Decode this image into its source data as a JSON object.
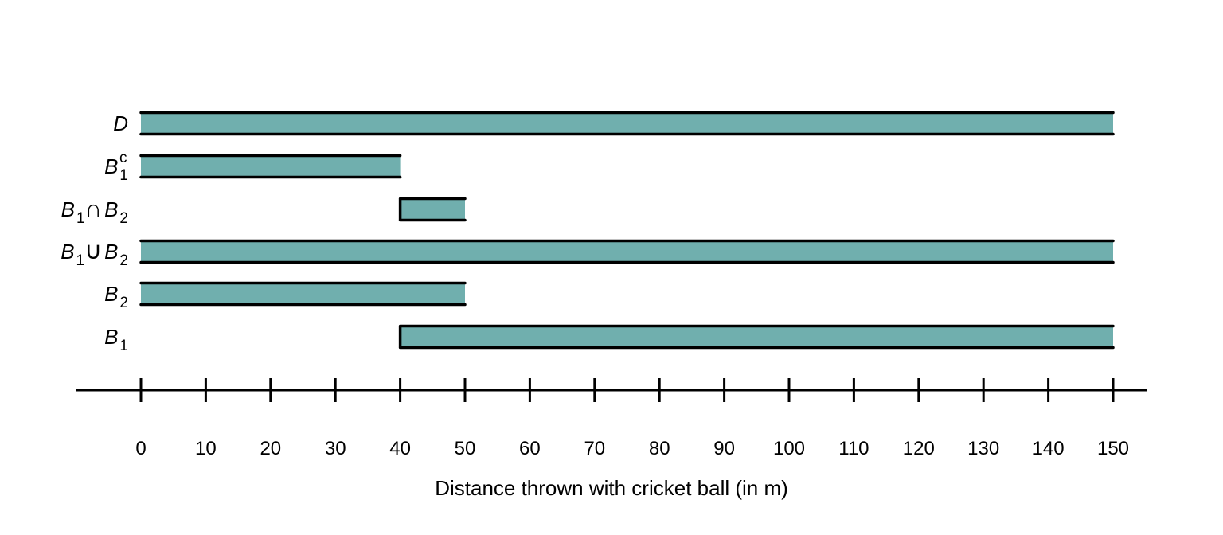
{
  "chart_data": {
    "type": "interval-diagram",
    "xlabel": "Distance thrown with cricket ball (in m)",
    "xlim": [
      0,
      150
    ],
    "ticks": [
      0,
      10,
      20,
      30,
      40,
      50,
      60,
      70,
      80,
      90,
      100,
      110,
      120,
      130,
      140,
      150
    ],
    "tick_labels": [
      "0",
      "10",
      "20",
      "30",
      "40",
      "50",
      "60",
      "70",
      "80",
      "90",
      "100",
      "110",
      "120",
      "130",
      "140",
      "150"
    ],
    "fill_color": "#70AFAE",
    "edge_color": "#000000",
    "rows": [
      {
        "label": [
          {
            "t": "D",
            "style": "it"
          }
        ],
        "start": 0,
        "end": 150,
        "start_closed": false,
        "end_closed": false
      },
      {
        "label": [
          {
            "t": "B",
            "style": "it"
          },
          {
            "t": "1",
            "style": "sub"
          },
          {
            "t": "c",
            "style": "sup"
          }
        ],
        "start": 0,
        "end": 40,
        "start_closed": false,
        "end_closed": false
      },
      {
        "label": [
          {
            "t": "B",
            "style": "it"
          },
          {
            "t": "1",
            "style": "sub"
          },
          {
            "t": "∩",
            "style": "op"
          },
          {
            "t": "B",
            "style": "it"
          },
          {
            "t": "2",
            "style": "sub"
          }
        ],
        "start": 40,
        "end": 50,
        "start_closed": true,
        "end_closed": false
      },
      {
        "label": [
          {
            "t": "B",
            "style": "it"
          },
          {
            "t": "1",
            "style": "sub"
          },
          {
            "t": "∪",
            "style": "op"
          },
          {
            "t": "B",
            "style": "it"
          },
          {
            "t": "2",
            "style": "sub"
          }
        ],
        "start": 0,
        "end": 150,
        "start_closed": false,
        "end_closed": false
      },
      {
        "label": [
          {
            "t": "B",
            "style": "it"
          },
          {
            "t": "2",
            "style": "sub"
          }
        ],
        "start": 0,
        "end": 50,
        "start_closed": false,
        "end_closed": false
      },
      {
        "label": [
          {
            "t": "B",
            "style": "it"
          },
          {
            "t": "1",
            "style": "sub"
          }
        ],
        "start": 40,
        "end": 150,
        "start_closed": true,
        "end_closed": false
      }
    ]
  }
}
